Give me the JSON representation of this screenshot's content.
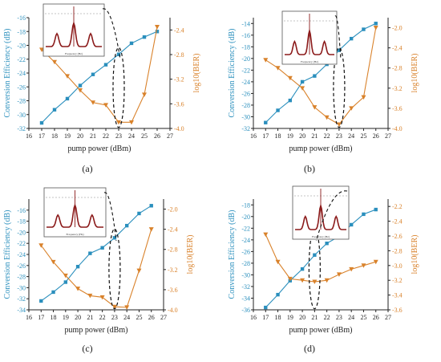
{
  "colors": {
    "efficiency": "#2a8fbd",
    "ber": "#d9822b",
    "spectrum": "#8b1a1a",
    "axis": "#222222"
  },
  "chart_data": [
    {
      "type": "line",
      "panel_label": "(a)",
      "xlabel": "pump power (dBm)",
      "ylabel_left": "Conversion Efficiency (dB)",
      "ylabel_right": "log10(BER)",
      "xlim": [
        16,
        27
      ],
      "xticks": [
        "16",
        "17",
        "18",
        "19",
        "20",
        "21",
        "22",
        "23",
        "24",
        "25",
        "26",
        "27"
      ],
      "ylim_left": [
        -32,
        -16
      ],
      "yticks_left": [
        "-16",
        "-18",
        "-20",
        "-22",
        "-24",
        "-26",
        "-28",
        "-30",
        "-32"
      ],
      "ylim_right": [
        -4.0,
        -2.2
      ],
      "yticks_right": [
        "-2.4",
        "-2.8",
        "-3.2",
        "-3.6",
        "-4.0"
      ],
      "x": [
        17,
        18,
        19,
        20,
        21,
        22,
        23,
        24,
        25,
        26
      ],
      "series": [
        {
          "axis": "left",
          "marker": "square",
          "values": [
            -31.2,
            -29.3,
            -27.7,
            -25.8,
            -24.2,
            -22.8,
            -21.3,
            -19.7,
            -18.8,
            -18.0
          ]
        },
        {
          "axis": "right",
          "marker": "triangle-down",
          "values": [
            -2.72,
            -2.92,
            -3.15,
            -3.38,
            -3.58,
            -3.62,
            -3.9,
            -3.9,
            -3.45,
            -2.35
          ]
        }
      ],
      "ellipse_x": 23.0,
      "inset": {
        "xlabel": "Frequency (Hz)"
      }
    },
    {
      "type": "line",
      "panel_label": "(b)",
      "xlabel": "pump power (dBm)",
      "ylabel_left": "Conversion Efficiency (dB)",
      "ylabel_right": "log10(BER)",
      "xlim": [
        16,
        27
      ],
      "xticks": [
        "16",
        "17",
        "18",
        "19",
        "20",
        "21",
        "22",
        "23",
        "24",
        "25",
        "26",
        "27"
      ],
      "ylim_left": [
        -32,
        -13
      ],
      "yticks_left": [
        "-14",
        "-16",
        "-18",
        "-20",
        "-22",
        "-24",
        "-26",
        "-28",
        "-30",
        "-32"
      ],
      "ylim_right": [
        -4.0,
        -1.8
      ],
      "yticks_right": [
        "-2.0",
        "-2.4",
        "-2.8",
        "-3.2",
        "-3.6",
        "-4.0"
      ],
      "x": [
        17,
        18,
        19,
        20,
        21,
        22,
        23,
        24,
        25,
        26
      ],
      "series": [
        {
          "axis": "left",
          "marker": "square",
          "values": [
            -31.0,
            -28.9,
            -27.2,
            -24.0,
            -23.0,
            -21.0,
            -18.6,
            -16.6,
            -15.0,
            -14.0
          ]
        },
        {
          "axis": "right",
          "marker": "triangle-down",
          "values": [
            -2.64,
            -2.8,
            -3.0,
            -3.2,
            -3.58,
            -3.78,
            -3.92,
            -3.6,
            -3.38,
            -2.0
          ]
        }
      ],
      "ellipse_x": 23.0,
      "inset": {
        "xlabel": "Frequency (Hz)"
      }
    },
    {
      "type": "line",
      "panel_label": "(c)",
      "xlabel": "pump power (dBm)",
      "ylabel_left": "Conversion Efficiency (dB)",
      "ylabel_right": "log10(BER)",
      "xlim": [
        16,
        27
      ],
      "xticks": [
        "16",
        "17",
        "18",
        "19",
        "20",
        "21",
        "22",
        "23",
        "24",
        "25",
        "26",
        "27"
      ],
      "ylim_left": [
        -34,
        -14
      ],
      "yticks_left": [
        "-16",
        "-18",
        "-20",
        "-22",
        "-24",
        "-26",
        "-28",
        "-30",
        "-32",
        "-34"
      ],
      "ylim_right": [
        -4.0,
        -1.8
      ],
      "yticks_right": [
        "-2.0",
        "-2.4",
        "-2.8",
        "-3.2",
        "-3.6",
        "-4.0"
      ],
      "x": [
        17,
        18,
        19,
        20,
        21,
        22,
        23,
        24,
        25,
        26
      ],
      "series": [
        {
          "axis": "left",
          "marker": "square",
          "values": [
            -32.4,
            -30.8,
            -29.0,
            -26.2,
            -23.8,
            -22.8,
            -21.0,
            -18.8,
            -16.6,
            -15.2
          ]
        },
        {
          "axis": "right",
          "marker": "triangle-down",
          "values": [
            -2.72,
            -3.05,
            -3.32,
            -3.58,
            -3.72,
            -3.75,
            -3.94,
            -3.95,
            -3.22,
            -2.4
          ]
        }
      ],
      "ellipse_x": 23.0,
      "inset": {
        "xlabel": "Frequency (Hz)"
      }
    },
    {
      "type": "line",
      "panel_label": "(d)",
      "xlabel": "pump power (dBm)",
      "ylabel_left": "Conversion Efficiency (dB)",
      "ylabel_right": "log10(BER)",
      "xlim": [
        16,
        27
      ],
      "xticks": [
        "16",
        "17",
        "18",
        "19",
        "20",
        "21",
        "22",
        "23",
        "24",
        "25",
        "26",
        "27"
      ],
      "ylim_left": [
        -36,
        -17
      ],
      "yticks_left": [
        "-18",
        "-20",
        "-22",
        "-24",
        "-26",
        "-28",
        "-30",
        "-32",
        "-34",
        "-36"
      ],
      "ylim_right": [
        -3.6,
        -2.1
      ],
      "yticks_right": [
        "-2.2",
        "-2.4",
        "-2.6",
        "-2.8",
        "-3.0",
        "-3.2",
        "-3.4",
        "-3.6"
      ],
      "x": [
        17,
        18,
        19,
        20,
        21,
        22,
        23,
        24,
        25,
        26
      ],
      "series": [
        {
          "axis": "left",
          "marker": "square",
          "values": [
            -35.6,
            -33.4,
            -31.0,
            -29.0,
            -26.6,
            -24.6,
            -23.4,
            -21.4,
            -19.6,
            -18.8
          ]
        },
        {
          "axis": "right",
          "marker": "triangle-down",
          "values": [
            -2.58,
            -2.95,
            -3.18,
            -3.2,
            -3.22,
            -3.2,
            -3.12,
            -3.05,
            -3.0,
            -2.95
          ]
        }
      ],
      "ellipse_x": 21.0,
      "inset": {
        "xlabel": "Frequency (Hz)"
      }
    }
  ]
}
